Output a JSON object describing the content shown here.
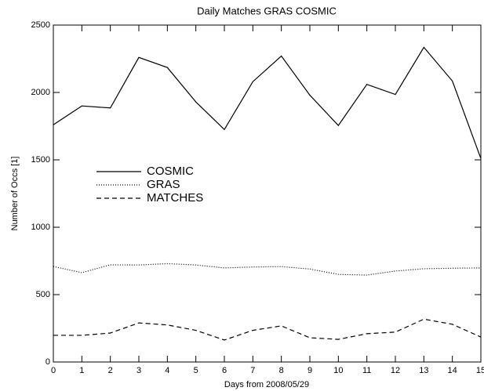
{
  "chart_data": {
    "type": "line",
    "title": "Daily Matches GRAS COSMIC",
    "x_label": "Days from 2008/05/29",
    "y_label": "Number of Occs [1]",
    "x": [
      0,
      1,
      2,
      3,
      4,
      5,
      6,
      7,
      8,
      9,
      10,
      11,
      12,
      13,
      14,
      15
    ],
    "series": [
      {
        "name": "COSMIC",
        "color": "#000000",
        "dash": "solid",
        "values": [
          1760,
          1900,
          1885,
          2260,
          2185,
          1930,
          1725,
          2080,
          2270,
          1980,
          1755,
          2060,
          1985,
          2335,
          2085,
          1510
        ]
      },
      {
        "name": "GRAS",
        "color": "#000000",
        "dash": "dotted",
        "values": [
          709,
          663,
          721,
          720,
          730,
          720,
          698,
          705,
          708,
          690,
          650,
          645,
          675,
          692,
          696,
          698
        ]
      },
      {
        "name": "MATCHES",
        "color": "#000000",
        "dash": "dashed",
        "values": [
          198,
          198,
          215,
          290,
          275,
          235,
          163,
          235,
          268,
          180,
          168,
          210,
          222,
          318,
          280,
          185
        ]
      }
    ],
    "xlim": [
      0,
      15
    ],
    "xticks": [
      0,
      1,
      2,
      3,
      4,
      5,
      6,
      7,
      8,
      9,
      10,
      11,
      12,
      13,
      14,
      15
    ],
    "ylim": [
      0,
      2500
    ],
    "yticks": [
      0,
      500,
      1000,
      1500,
      2000,
      2500
    ],
    "grid": false
  }
}
